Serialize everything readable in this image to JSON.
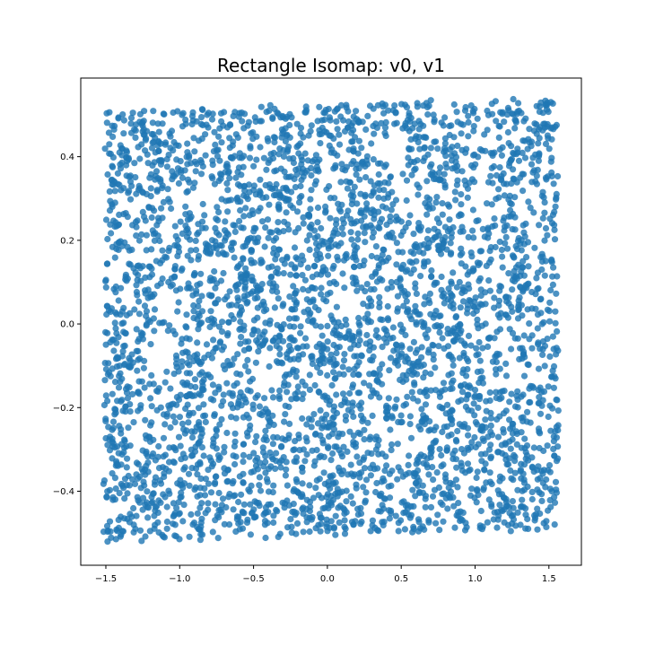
{
  "chart_data": {
    "type": "scatter",
    "title": "Rectangle Isomap: v0, v1",
    "xlabel": "",
    "ylabel": "",
    "xlim": [
      -1.67,
      1.72
    ],
    "ylim": [
      -0.577,
      0.588
    ],
    "xticks": [
      -1.5,
      -1.0,
      -0.5,
      0.0,
      0.5,
      1.0,
      1.5
    ],
    "xtick_labels": [
      "−1.5",
      "−1.0",
      "−0.5",
      "0.0",
      "0.5",
      "1.0",
      "1.5"
    ],
    "yticks": [
      -0.4,
      -0.2,
      0.0,
      0.2,
      0.4
    ],
    "ytick_labels": [
      "−0.4",
      "−0.2",
      "0.0",
      "0.2",
      "0.4"
    ],
    "grid": false,
    "legend": "none",
    "point_color": "#1f77b4",
    "point_alpha": 0.8,
    "series": [
      {
        "point_count": 4000,
        "x_range": [
          -1.55,
          1.57
        ],
        "y_range": [
          -0.525,
          0.535
        ],
        "distribution": "approximately uniform over a slightly skewed rectangle (corners approx. (-1.50,0.51), (1.55,0.54), (-1.52,-0.52), (1.57,-0.49)) with several small sparse holes"
      }
    ]
  }
}
